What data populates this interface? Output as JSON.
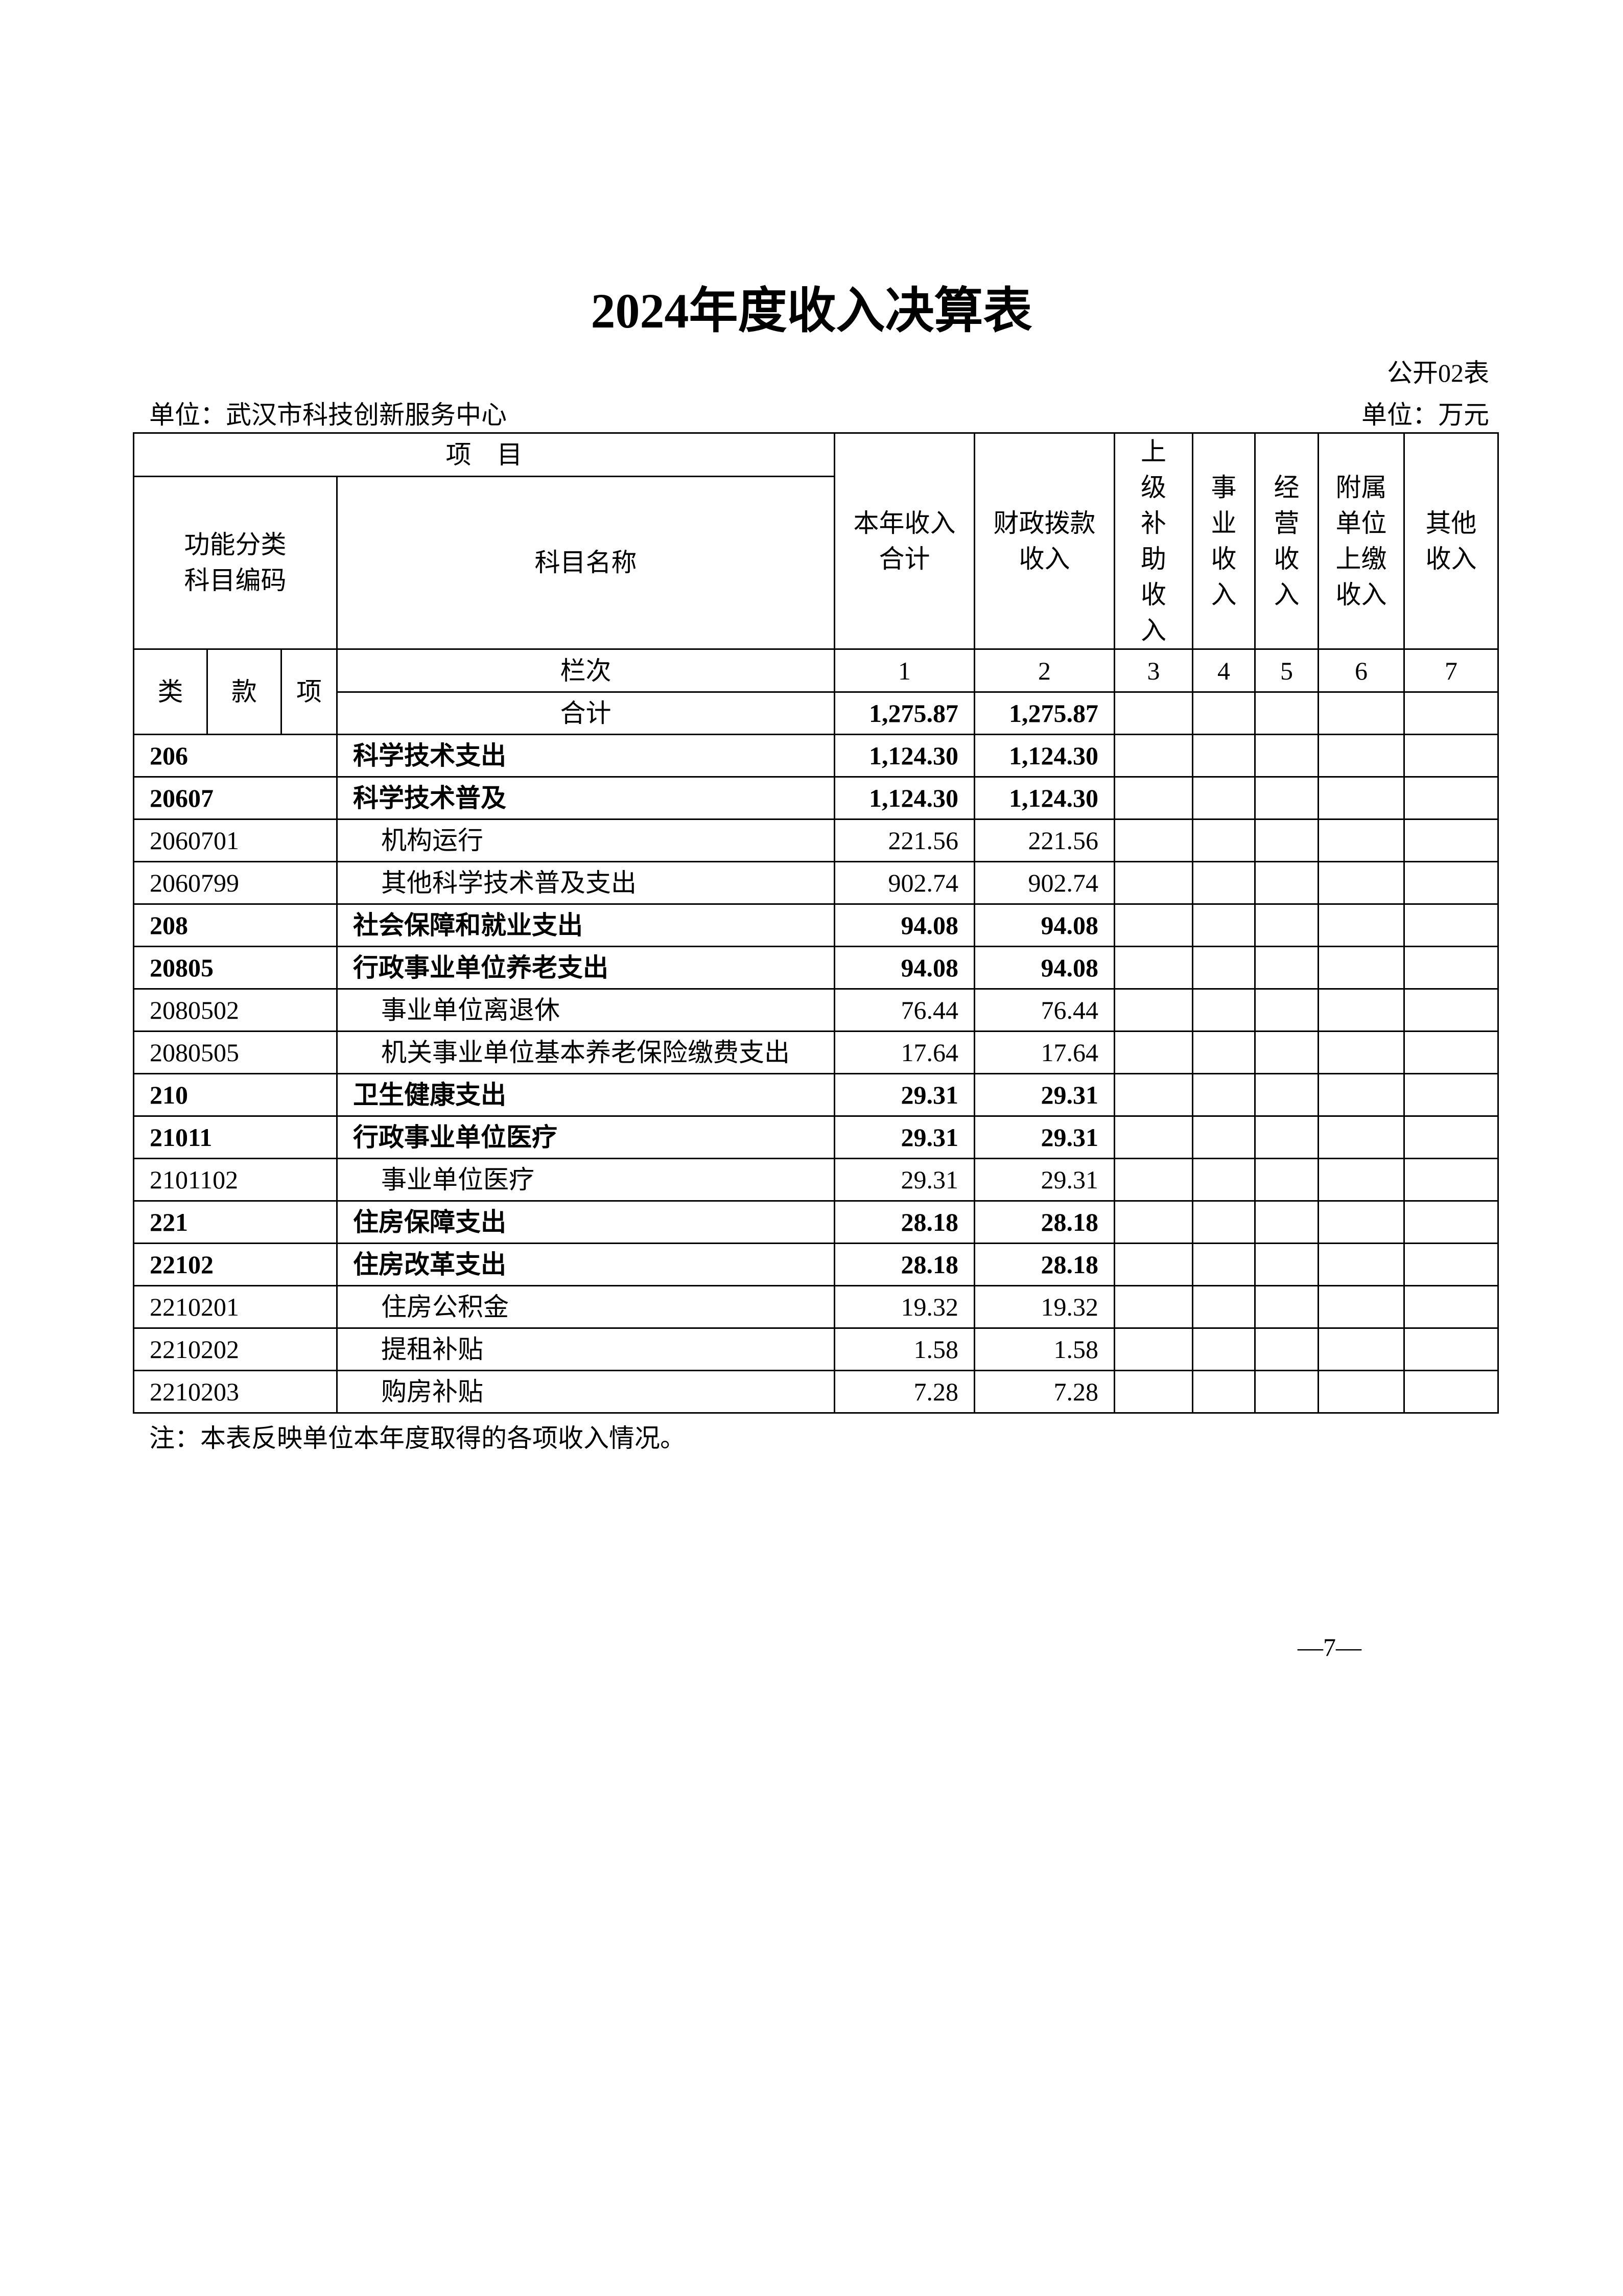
{
  "title": "2024年度收入决算表",
  "table_no": "公开02表",
  "unit_org": "单位：武汉市科技创新服务中心",
  "unit_money": "单位：万元",
  "header": {
    "item": "项　目",
    "code_group": "功能分类\n科目编码",
    "name": "科目名称",
    "col_total": "本年收入\n合计",
    "col_fiscal": "财政拨款\n收入",
    "col_superior": "上\n级\n补\n助\n收\n入",
    "col_business": "事\n业\n收\n入",
    "col_operation": "经\n营\n收\n入",
    "col_affiliated": "附属\n单位\n上缴\n收入",
    "col_other": "其他\n收入",
    "lei": "类",
    "kuan": "款",
    "xiang": "项",
    "lanci": "栏次",
    "col_numbers": [
      "1",
      "2",
      "3",
      "4",
      "5",
      "6",
      "7"
    ],
    "total_label": "合计",
    "total_values": [
      "1,275.87",
      "1,275.87"
    ]
  },
  "rows": [
    {
      "code": "206",
      "name": "科学技术支出",
      "total": "1,124.30",
      "fiscal": "1,124.30",
      "level": "category"
    },
    {
      "code": "20607",
      "name": "科学技术普及",
      "total": "1,124.30",
      "fiscal": "1,124.30",
      "level": "category"
    },
    {
      "code": "2060701",
      "name": "机构运行",
      "total": "221.56",
      "fiscal": "221.56",
      "level": "item"
    },
    {
      "code": "2060799",
      "name": "其他科学技术普及支出",
      "total": "902.74",
      "fiscal": "902.74",
      "level": "item"
    },
    {
      "code": "208",
      "name": "社会保障和就业支出",
      "total": "94.08",
      "fiscal": "94.08",
      "level": "category"
    },
    {
      "code": "20805",
      "name": "行政事业单位养老支出",
      "total": "94.08",
      "fiscal": "94.08",
      "level": "category"
    },
    {
      "code": "2080502",
      "name": "事业单位离退休",
      "total": "76.44",
      "fiscal": "76.44",
      "level": "item"
    },
    {
      "code": "2080505",
      "name": "机关事业单位基本养老保险缴费支出",
      "total": "17.64",
      "fiscal": "17.64",
      "level": "item"
    },
    {
      "code": "210",
      "name": "卫生健康支出",
      "total": "29.31",
      "fiscal": "29.31",
      "level": "category"
    },
    {
      "code": "21011",
      "name": "行政事业单位医疗",
      "total": "29.31",
      "fiscal": "29.31",
      "level": "category"
    },
    {
      "code": "2101102",
      "name": "事业单位医疗",
      "total": "29.31",
      "fiscal": "29.31",
      "level": "item"
    },
    {
      "code": "221",
      "name": "住房保障支出",
      "total": "28.18",
      "fiscal": "28.18",
      "level": "category"
    },
    {
      "code": "22102",
      "name": "住房改革支出",
      "total": "28.18",
      "fiscal": "28.18",
      "level": "category"
    },
    {
      "code": "2210201",
      "name": "住房公积金",
      "total": "19.32",
      "fiscal": "19.32",
      "level": "item"
    },
    {
      "code": "2210202",
      "name": "提租补贴",
      "total": "1.58",
      "fiscal": "1.58",
      "level": "item"
    },
    {
      "code": "2210203",
      "name": "购房补贴",
      "total": "7.28",
      "fiscal": "7.28",
      "level": "item"
    }
  ],
  "note": "注：本表反映单位本年度取得的各项收入情况。",
  "page_number": "—7—"
}
